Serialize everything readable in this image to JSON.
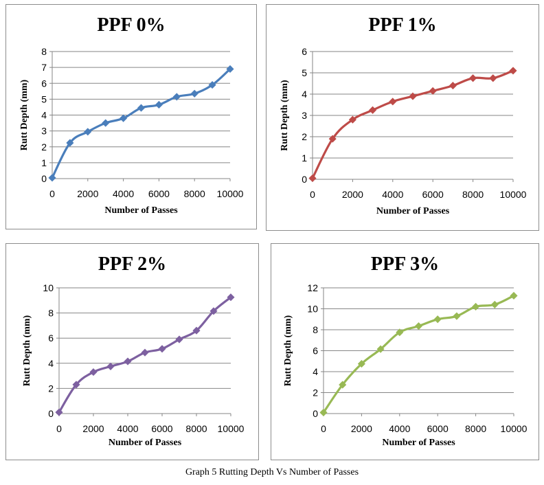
{
  "caption": "Graph 5 Rutting Depth Vs Number of Passes",
  "chart_data": [
    {
      "type": "line",
      "title": "PPF 0%",
      "xlabel": "Number of Passes",
      "ylabel": "Rutt Depth (mm)",
      "color": "#4a7ebb",
      "xlim": [
        0,
        10000
      ],
      "ylim": [
        0,
        8
      ],
      "xticks": [
        0,
        2000,
        4000,
        6000,
        8000,
        10000
      ],
      "yticks": [
        0,
        1,
        2,
        3,
        4,
        5,
        6,
        7,
        8
      ],
      "x": [
        0,
        1000,
        2000,
        3000,
        4000,
        5000,
        6000,
        7000,
        8000,
        9000,
        10000
      ],
      "y": [
        0.05,
        2.25,
        2.95,
        3.5,
        3.8,
        4.45,
        4.65,
        5.15,
        5.35,
        5.9,
        6.9
      ],
      "grid": "horizontal"
    },
    {
      "type": "line",
      "title": "PPF 1%",
      "xlabel": "Number of Passes",
      "ylabel": "Rutt Depth (mm)",
      "color": "#be4b48",
      "xlim": [
        0,
        10000
      ],
      "ylim": [
        0,
        6
      ],
      "xticks": [
        0,
        2000,
        4000,
        6000,
        8000,
        10000
      ],
      "yticks": [
        0,
        1,
        2,
        3,
        4,
        5,
        6
      ],
      "x": [
        0,
        1000,
        2000,
        3000,
        4000,
        5000,
        6000,
        7000,
        8000,
        9000,
        10000
      ],
      "y": [
        0.05,
        1.9,
        2.8,
        3.25,
        3.65,
        3.9,
        4.15,
        4.4,
        4.75,
        4.75,
        5.1
      ],
      "grid": "horizontal"
    },
    {
      "type": "line",
      "title": "PPF 2%",
      "xlabel": "Number of Passes",
      "ylabel": "Rutt Depth (mm)",
      "color": "#7d60a0",
      "xlim": [
        0,
        10000
      ],
      "ylim": [
        0,
        10
      ],
      "xticks": [
        0,
        2000,
        4000,
        6000,
        8000,
        10000
      ],
      "yticks": [
        0,
        2,
        4,
        6,
        8,
        10
      ],
      "x": [
        0,
        1000,
        2000,
        3000,
        4000,
        5000,
        6000,
        7000,
        8000,
        9000,
        10000
      ],
      "y": [
        0.1,
        2.3,
        3.3,
        3.75,
        4.15,
        4.85,
        5.15,
        5.9,
        6.6,
        8.15,
        9.25
      ],
      "grid": "horizontal"
    },
    {
      "type": "line",
      "title": "PPF 3%",
      "xlabel": "Number of Passes",
      "ylabel": "Rutt Depth (mm)",
      "color": "#98b954",
      "xlim": [
        0,
        10000
      ],
      "ylim": [
        0,
        12
      ],
      "xticks": [
        0,
        2000,
        4000,
        6000,
        8000,
        10000
      ],
      "yticks": [
        0,
        2,
        4,
        6,
        8,
        10,
        12
      ],
      "x": [
        0,
        1000,
        2000,
        3000,
        4000,
        5000,
        6000,
        7000,
        8000,
        9000,
        10000
      ],
      "y": [
        0.1,
        2.75,
        4.75,
        6.15,
        7.75,
        8.35,
        9.0,
        9.3,
        10.2,
        10.4,
        11.25
      ],
      "grid": "horizontal"
    }
  ]
}
